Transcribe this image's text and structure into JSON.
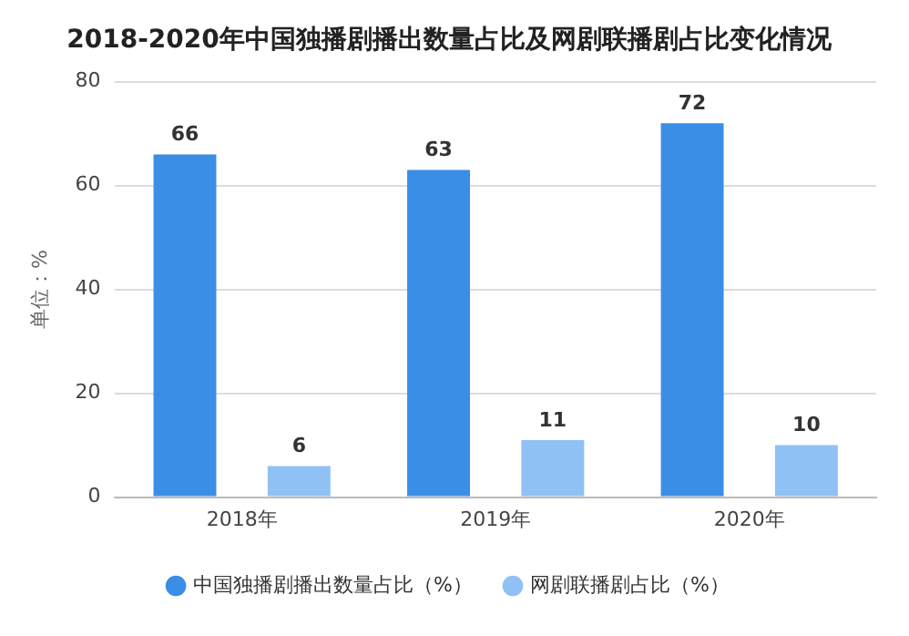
{
  "chart_data": {
    "type": "bar",
    "title": "2018-2020年中国独播剧播出数量占比及网剧联播剧占比变化情况",
    "ylabel": "单位：%",
    "categories": [
      "2018年",
      "2019年",
      "2020年"
    ],
    "series": [
      {
        "name": "中国独播剧播出数量占比（%）",
        "color": "#3a8ee6",
        "values": [
          66,
          63,
          72
        ]
      },
      {
        "name": "网剧联播剧占比（%）",
        "color": "#8fc1f5",
        "values": [
          6,
          11,
          10
        ]
      }
    ],
    "ylim": [
      0,
      80
    ],
    "yticks": [
      0,
      20,
      40,
      60,
      80
    ],
    "grid": "y",
    "legend": "bottom",
    "data_labels": true
  }
}
